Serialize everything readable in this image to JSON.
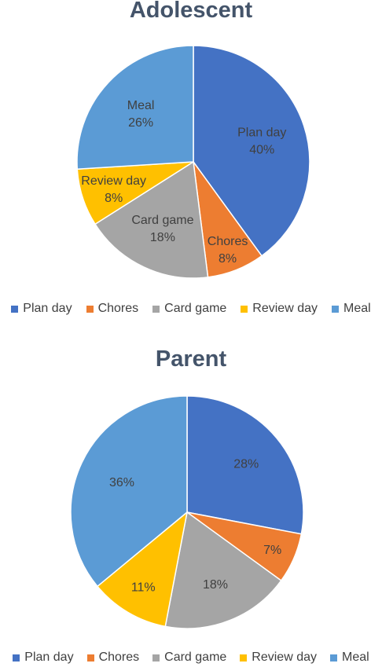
{
  "chart_data": [
    {
      "type": "pie",
      "title": "Adolescent",
      "categories": [
        "Plan day",
        "Chores",
        "Card game",
        "Review day",
        "Meal"
      ],
      "values": [
        40,
        8,
        18,
        8,
        26
      ],
      "labels": [
        {
          "name": "Plan day",
          "pct": "40%"
        },
        {
          "name": "Chores",
          "pct": "8%"
        },
        {
          "name": "Card game",
          "pct": "18%"
        },
        {
          "name": "Review day",
          "pct": "8%"
        },
        {
          "name": "Meal",
          "pct": "26%"
        }
      ],
      "colors": [
        "#4472c4",
        "#ed7d31",
        "#a5a5a5",
        "#ffc000",
        "#5b9bd5"
      ],
      "legend_position": "bottom",
      "label_style": "category-and-percent"
    },
    {
      "type": "pie",
      "title": "Parent",
      "categories": [
        "Plan day",
        "Chores",
        "Card game",
        "Review day",
        "Meal"
      ],
      "values": [
        28,
        7,
        18,
        11,
        36
      ],
      "labels": [
        {
          "name": "",
          "pct": "28%"
        },
        {
          "name": "",
          "pct": "7%"
        },
        {
          "name": "",
          "pct": "18%"
        },
        {
          "name": "",
          "pct": "11%"
        },
        {
          "name": "",
          "pct": "36%"
        }
      ],
      "colors": [
        "#4472c4",
        "#ed7d31",
        "#a5a5a5",
        "#ffc000",
        "#5b9bd5"
      ],
      "legend_position": "bottom",
      "label_style": "percent-only"
    }
  ]
}
